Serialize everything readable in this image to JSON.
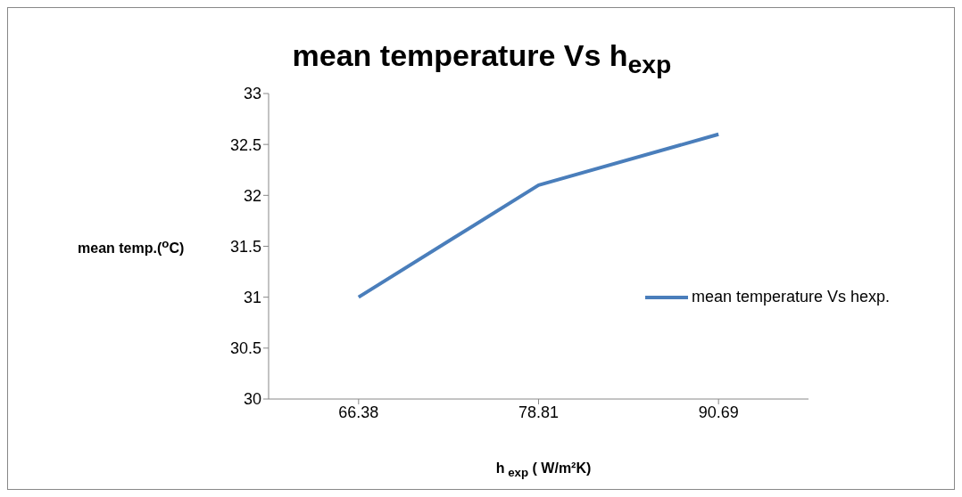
{
  "chart_data": {
    "type": "line",
    "title": "mean temperature  Vs h$_{exp}$",
    "xlabel": "h$_{ exp}$ ( W/m²K)",
    "ylabel": "mean temp.($^{o}$C)",
    "categories": [
      "66.38",
      "78.81",
      "90.69"
    ],
    "series": [
      {
        "name": "mean temperature  Vs hexp.",
        "color": "#4a7ebb",
        "values": [
          31,
          32.1,
          32.6
        ]
      }
    ],
    "ylim": [
      30,
      33
    ],
    "yticks": [
      30,
      30.5,
      31,
      31.5,
      32,
      32.5,
      33
    ],
    "legend": "right",
    "marker": "none",
    "line_style": "solid"
  }
}
